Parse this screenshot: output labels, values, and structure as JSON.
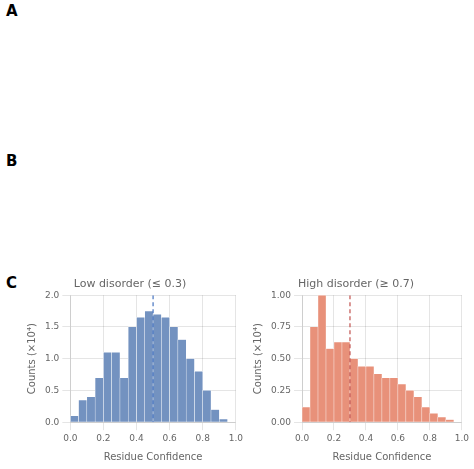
{
  "annotations": [
    "A",
    "B",
    "C"
  ],
  "chart_data": [
    {
      "type": "histogram",
      "title": "Low disorder (≤ 0.3)",
      "xlabel": "Residue Confidence",
      "ylabel": "Counts (×10⁴)",
      "bins": [
        0.0,
        0.05,
        0.1,
        0.15,
        0.2,
        0.25,
        0.3,
        0.35,
        0.4,
        0.45,
        0.5,
        0.55,
        0.6,
        0.65,
        0.7,
        0.75,
        0.8,
        0.85,
        0.9,
        0.95
      ],
      "values": [
        0.1,
        0.35,
        0.4,
        0.7,
        1.1,
        1.1,
        0.7,
        1.5,
        1.65,
        1.75,
        1.7,
        1.65,
        1.5,
        1.3,
        1.0,
        0.8,
        0.5,
        0.2,
        0.05
      ],
      "color": "#7392c0",
      "xlim": [
        0.0,
        1.0
      ],
      "ylim": [
        0.0,
        2.0
      ],
      "xticks": [
        {
          "value": 0.0,
          "label": "0.0"
        },
        0.2,
        0.4,
        0.6,
        0.8,
        {
          "value": 1.0,
          "label": "1.0"
        }
      ],
      "yticks": [
        {
          "value": 0.0,
          "label": "0.0"
        },
        0.5,
        {
          "value": 1.0,
          "label": "1.0"
        },
        1.5,
        {
          "value": 2.0,
          "label": "2.0"
        }
      ],
      "grid": true,
      "vline": {
        "x": 0.5,
        "color": "#4472c0",
        "line_style": "dashed"
      }
    },
    {
      "type": "histogram",
      "title": "High disorder (≥ 0.7)",
      "xlabel": "Residue Confidence",
      "ylabel": "Counts (×10⁴)",
      "bins": [
        0.0,
        0.05,
        0.1,
        0.15,
        0.2,
        0.25,
        0.3,
        0.35,
        0.4,
        0.45,
        0.5,
        0.55,
        0.6,
        0.65,
        0.7,
        0.75,
        0.8,
        0.85,
        0.9,
        0.95
      ],
      "values": [
        0.12,
        0.75,
        1.0,
        0.58,
        0.63,
        0.63,
        0.5,
        0.44,
        0.44,
        0.38,
        0.35,
        0.35,
        0.3,
        0.25,
        0.2,
        0.12,
        0.07,
        0.04,
        0.02
      ],
      "color": "#e8917a",
      "xlim": [
        0.0,
        1.0
      ],
      "ylim": [
        0.0,
        1.0
      ],
      "xticks": [
        {
          "value": 0.0,
          "label": "0.0"
        },
        0.2,
        0.4,
        0.6,
        0.8,
        {
          "value": 1.0,
          "label": "1.0"
        }
      ],
      "yticks": [
        {
          "value": 0.0,
          "label": "0.00"
        },
        0.25,
        {
          "value": 0.5,
          "label": "0.50"
        },
        0.75,
        {
          "value": 1.0,
          "label": "1.00"
        }
      ],
      "grid": true,
      "vline": {
        "x": 0.3,
        "color": "#c0504d",
        "line_style": "dashed"
      }
    }
  ]
}
